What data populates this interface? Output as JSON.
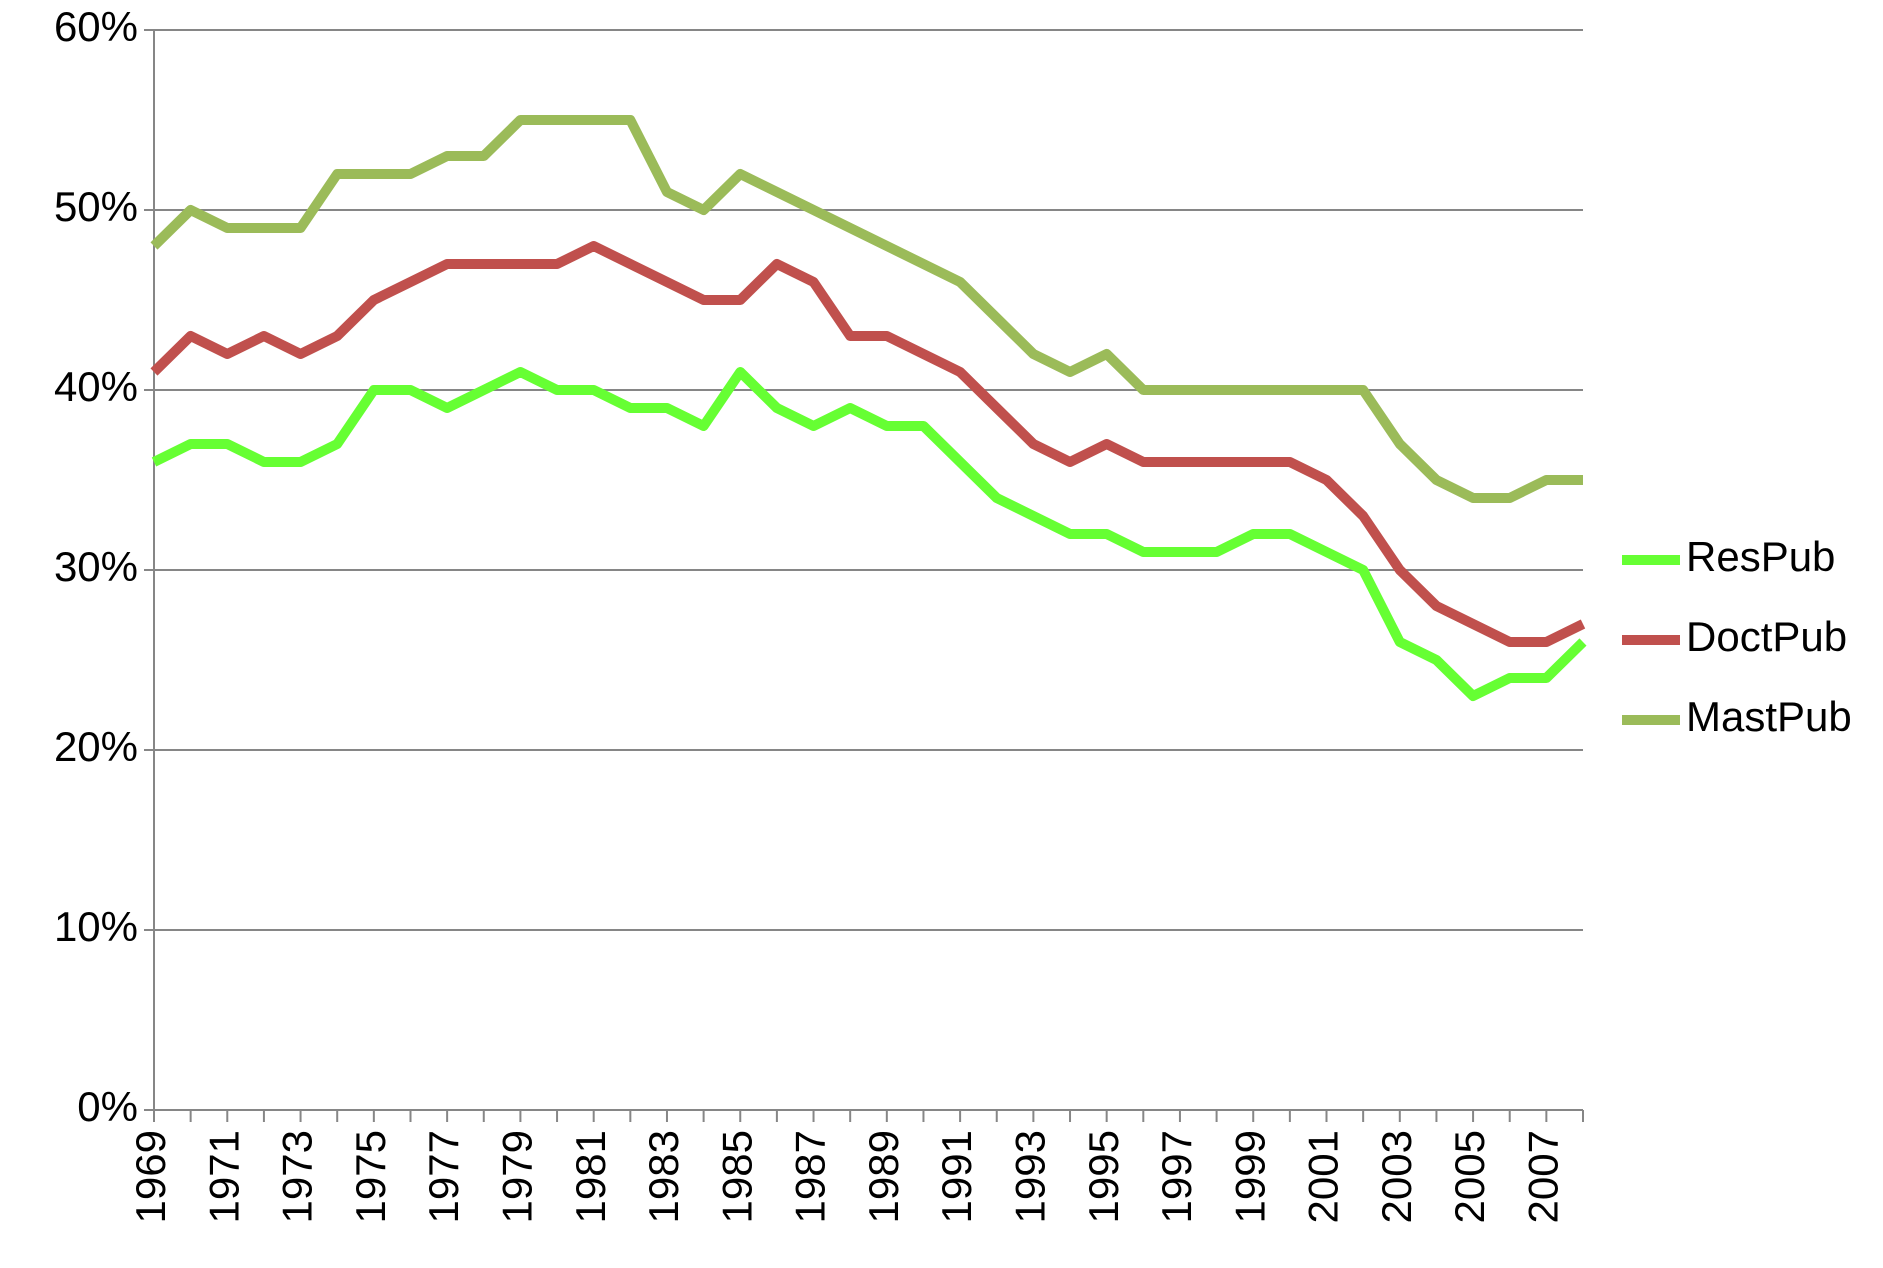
{
  "chart_data": {
    "type": "line",
    "categories": [
      "1969",
      null,
      "1971",
      null,
      "1973",
      null,
      "1975",
      null,
      "1977",
      null,
      "1979",
      null,
      "1981",
      null,
      "1983",
      null,
      "1985",
      null,
      "1987",
      null,
      "1989",
      null,
      "1991",
      null,
      "1993",
      null,
      "1995",
      null,
      "1997",
      null,
      "1999",
      null,
      "2001",
      null,
      "2003",
      null,
      "2005",
      null,
      "2007",
      null
    ],
    "series": [
      {
        "name": "ResPub",
        "color": "#66ff33",
        "values": [
          36,
          37,
          37,
          36,
          36,
          37,
          40,
          40,
          39,
          40,
          41,
          40,
          40,
          39,
          39,
          38,
          41,
          39,
          38,
          39,
          38,
          38,
          36,
          34,
          33,
          32,
          32,
          31,
          31,
          31,
          32,
          32,
          31,
          30,
          26,
          25,
          23,
          24,
          24,
          26
        ]
      },
      {
        "name": "DoctPub",
        "color": "#c0504d",
        "values": [
          41,
          43,
          42,
          43,
          42,
          43,
          45,
          46,
          47,
          47,
          47,
          47,
          48,
          47,
          46,
          45,
          45,
          47,
          46,
          43,
          43,
          42,
          41,
          39,
          37,
          36,
          37,
          36,
          36,
          36,
          36,
          36,
          35,
          33,
          30,
          28,
          27,
          26,
          26,
          27
        ]
      },
      {
        "name": "MastPub",
        "color": "#9bbb59",
        "values": [
          48,
          50,
          49,
          49,
          49,
          52,
          52,
          52,
          53,
          53,
          55,
          55,
          55,
          55,
          51,
          50,
          52,
          51,
          50,
          49,
          48,
          47,
          46,
          44,
          42,
          41,
          42,
          40,
          40,
          40,
          40,
          40,
          40,
          40,
          37,
          35,
          34,
          34,
          35,
          35
        ]
      }
    ],
    "ylim": [
      0,
      60
    ],
    "yticks": [
      {
        "value": 0,
        "label": "0%"
      },
      {
        "value": 10,
        "label": "10%"
      },
      {
        "value": 20,
        "label": "20%"
      },
      {
        "value": 30,
        "label": "30%"
      },
      {
        "value": 40,
        "label": "40%"
      },
      {
        "value": 50,
        "label": "50%"
      },
      {
        "value": 60,
        "label": "60%"
      }
    ],
    "grid": true,
    "legend": "right"
  }
}
